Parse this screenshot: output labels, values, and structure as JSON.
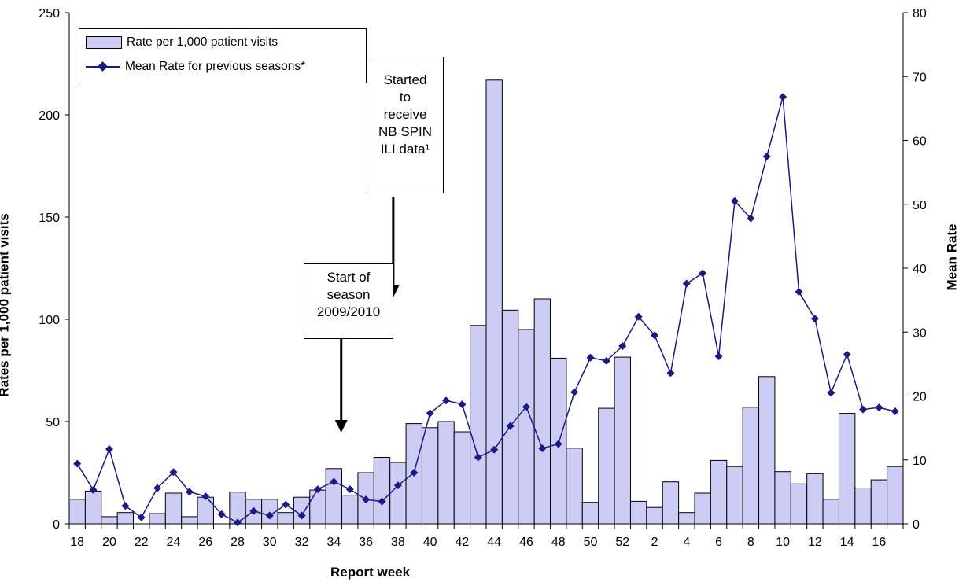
{
  "chart_data": {
    "type": "bar",
    "xlabel": "Report week",
    "ylabel_left": "Rates per 1,000 patient visits",
    "ylabel_right": "Mean Rate",
    "ylim_left": [
      0,
      250
    ],
    "ylim_right": [
      0,
      80
    ],
    "yticks_left": [
      0,
      50,
      100,
      150,
      200,
      250
    ],
    "yticks_right": [
      0,
      10,
      20,
      30,
      40,
      50,
      60,
      70,
      80
    ],
    "weeks": [
      18,
      19,
      20,
      21,
      22,
      23,
      24,
      25,
      26,
      27,
      28,
      29,
      30,
      31,
      32,
      33,
      34,
      35,
      36,
      37,
      38,
      39,
      40,
      41,
      42,
      43,
      44,
      45,
      46,
      47,
      48,
      49,
      50,
      51,
      52,
      1,
      2,
      3,
      4,
      5,
      6,
      7,
      8,
      9,
      10,
      11,
      12,
      13,
      14,
      15,
      16,
      17
    ],
    "tick_labels": [
      "18",
      "",
      "20",
      "",
      "22",
      "",
      "24",
      "",
      "26",
      "",
      "28",
      "",
      "30",
      "",
      "32",
      "",
      "34",
      "",
      "36",
      "",
      "38",
      "",
      "40",
      "",
      "42",
      "",
      "44",
      "",
      "46",
      "",
      "48",
      "",
      "50",
      "",
      "52",
      "",
      "2",
      "",
      "4",
      "",
      "6",
      "",
      "8",
      "",
      "10",
      "",
      "12",
      "",
      "14",
      "",
      "16",
      ""
    ],
    "series": [
      {
        "name": "Rate per 1,000 patient visits",
        "kind": "bar",
        "axis": "left",
        "values": [
          12,
          16,
          3.5,
          5.5,
          0,
          5,
          15,
          3.5,
          13,
          0,
          15.5,
          12,
          12,
          5.5,
          13,
          16.5,
          27,
          14,
          25,
          32.5,
          30,
          49,
          47,
          50,
          45,
          97,
          217,
          104.5,
          95,
          110,
          81,
          37,
          10.5,
          56.5,
          81.5,
          11,
          8,
          20.5,
          5.5,
          15,
          31,
          28,
          57,
          72,
          25.5,
          19.5,
          24.5,
          12,
          54,
          17.5,
          21.5,
          28
        ]
      },
      {
        "name": "Mean Rate for previous seasons*",
        "kind": "line",
        "axis": "right",
        "values": [
          9.4,
          5.3,
          11.7,
          2.8,
          1.0,
          5.6,
          8.1,
          5.0,
          4.3,
          1.5,
          0.2,
          2.0,
          1.3,
          3.0,
          1.3,
          5.4,
          6.6,
          5.4,
          3.8,
          3.5,
          6.0,
          8.0,
          17.3,
          19.3,
          18.7,
          10.4,
          11.6,
          15.3,
          18.3,
          11.8,
          12.5,
          20.6,
          26.0,
          25.5,
          27.8,
          32.4,
          29.5,
          23.6,
          37.6,
          39.2,
          26.2,
          50.5,
          47.8,
          57.5,
          66.8,
          36.3,
          32.1,
          20.5,
          26.5,
          17.9,
          18.2,
          17.6
        ]
      }
    ],
    "annotations": [
      {
        "lines": [
          "Start of",
          "season",
          "2009/2010"
        ],
        "arrow_to_week": 35
      },
      {
        "lines": [
          "Started",
          "to",
          "receive",
          "NB SPIN",
          "ILI data¹"
        ],
        "arrow_to_week": 38
      }
    ],
    "legend_position": "top-left",
    "grid": false,
    "colors": {
      "bar_fill": "#ccccf5",
      "bar_stroke": "#000000",
      "line": "#1a1a80"
    }
  }
}
